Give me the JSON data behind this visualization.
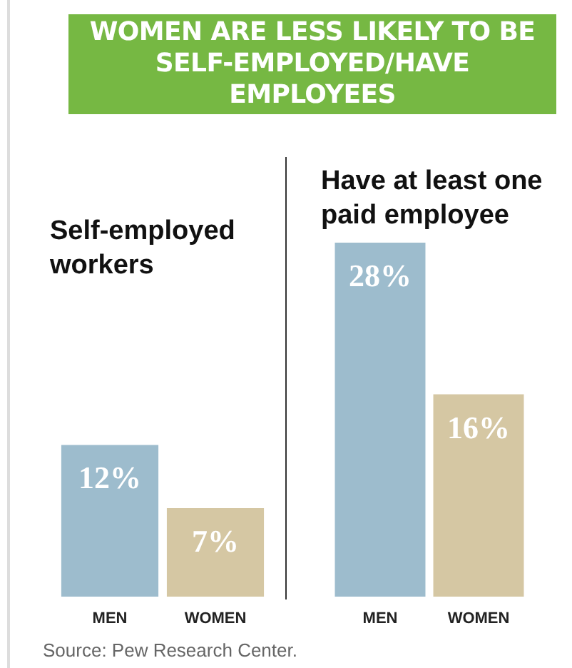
{
  "chart_data": [
    {
      "type": "bar",
      "title": "WOMEN ARE LESS LIKELY TO BE SELF-EMPLOYED/HAVE EMPLOYEES",
      "subtitle": "Self-employed workers",
      "categories": [
        "MEN",
        "WOMEN"
      ],
      "values": [
        12,
        7
      ],
      "colors": [
        "#9dbccd",
        "#d5c7a3"
      ],
      "value_labels": [
        "12%",
        "7%"
      ]
    },
    {
      "type": "bar",
      "title": "Have at least one paid employee",
      "categories": [
        "MEN",
        "WOMEN"
      ],
      "values": [
        28,
        16
      ],
      "colors": [
        "#9dbccd",
        "#d5c7a3"
      ],
      "value_labels": [
        "28%",
        "16%"
      ],
      "annotations": [
        "Source: Pew Research Center."
      ]
    }
  ]
}
